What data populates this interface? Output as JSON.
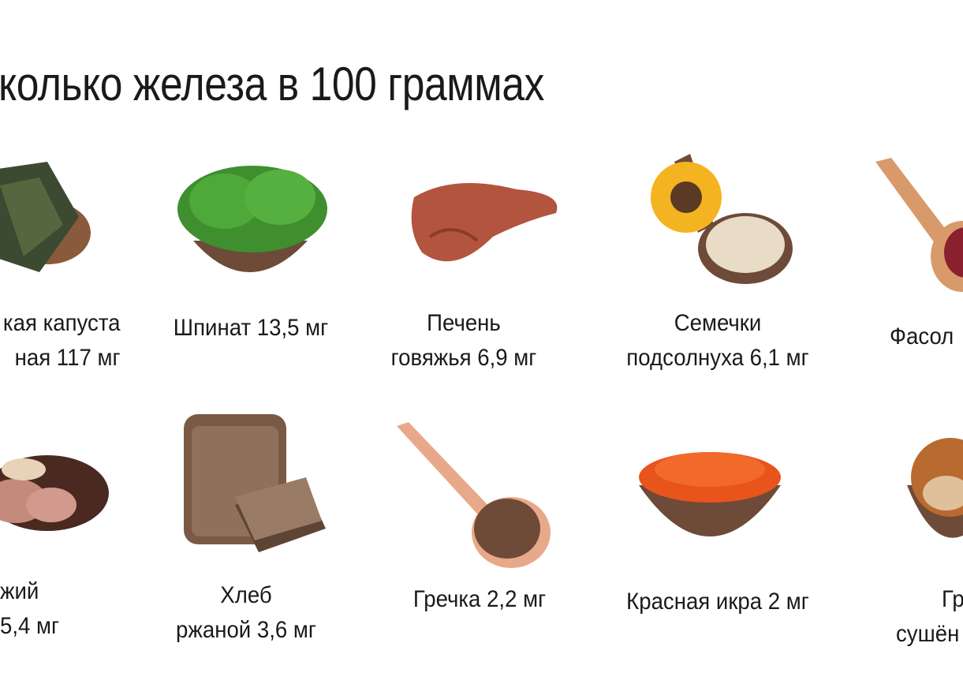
{
  "title": "колько железа в 100 граммах",
  "items": [
    {
      "lines": [
        "кая капуста",
        "ная 117 мг"
      ],
      "icon": "seaweed-icon"
    },
    {
      "lines": [
        "Шпинат 13,5 мг"
      ],
      "icon": "spinach-icon"
    },
    {
      "lines": [
        "Печень",
        "говяжья 6,9 мг"
      ],
      "icon": "liver-icon"
    },
    {
      "lines": [
        "Семечки",
        "подсолнуха 6,1 мг"
      ],
      "icon": "sunflower-seeds-icon"
    },
    {
      "lines": [
        "Фасол"
      ],
      "icon": "beans-icon"
    },
    {
      "lines": [
        "жий",
        "5,4 мг"
      ],
      "icon": "meat-plate-icon"
    },
    {
      "lines": [
        "Хлеб",
        "ржаной 3,6 мг"
      ],
      "icon": "rye-bread-icon"
    },
    {
      "lines": [
        "Гречка 2,2 мг"
      ],
      "icon": "buckwheat-icon"
    },
    {
      "lines": [
        "Красная икра 2 мг"
      ],
      "icon": "red-caviar-icon"
    },
    {
      "lines": [
        "Гр",
        "сушён"
      ],
      "icon": "dried-mushrooms-icon"
    }
  ]
}
